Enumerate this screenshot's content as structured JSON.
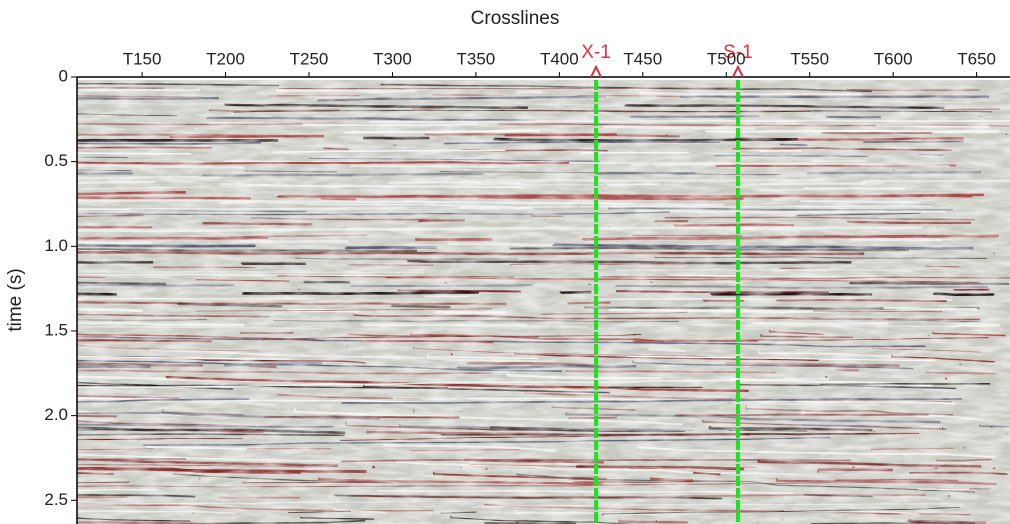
{
  "chart_data": {
    "type": "seismic-section",
    "title": "Crosslines",
    "ylabel": "time (s)",
    "xlim": [
      111,
      670
    ],
    "xticks": [
      {
        "value": 150,
        "label": "T150"
      },
      {
        "value": 200,
        "label": "T200"
      },
      {
        "value": 250,
        "label": "T250"
      },
      {
        "value": 300,
        "label": "T300"
      },
      {
        "value": 350,
        "label": "T350"
      },
      {
        "value": 400,
        "label": "T400"
      },
      {
        "value": 450,
        "label": "T450"
      },
      {
        "value": 500,
        "label": "T500"
      },
      {
        "value": 550,
        "label": "T550"
      },
      {
        "value": 600,
        "label": "T600"
      },
      {
        "value": 650,
        "label": "T650"
      }
    ],
    "ylim": [
      0,
      2.64
    ],
    "yticks": [
      0,
      0.5,
      {
        "value": 1,
        "label": "1.0"
      },
      1.5,
      {
        "value": 2,
        "label": "2.0"
      },
      2.5
    ],
    "y_inverted": true,
    "wells": [
      {
        "name": "X-1",
        "crossline": 422,
        "color": "#19e619"
      },
      {
        "name": "S-1",
        "crossline": 507,
        "color": "#19e619"
      }
    ],
    "well_label_color": "#e0303a"
  }
}
